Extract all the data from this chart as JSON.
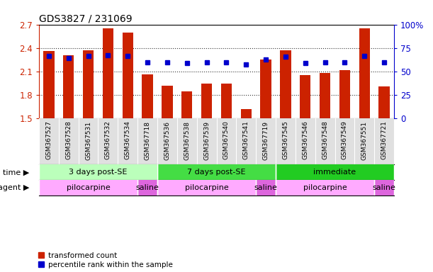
{
  "title": "GDS3827 / 231069",
  "samples": [
    "GSM367527",
    "GSM367528",
    "GSM367531",
    "GSM367532",
    "GSM367534",
    "GSM367718",
    "GSM367536",
    "GSM367538",
    "GSM367539",
    "GSM367540",
    "GSM367541",
    "GSM367719",
    "GSM367545",
    "GSM367546",
    "GSM367548",
    "GSM367549",
    "GSM367551",
    "GSM367721"
  ],
  "red_values": [
    2.36,
    2.31,
    2.37,
    2.65,
    2.6,
    2.06,
    1.92,
    1.85,
    1.95,
    1.95,
    1.62,
    2.25,
    2.37,
    2.05,
    2.08,
    2.12,
    2.65,
    1.91
  ],
  "blue_values": [
    2.3,
    2.27,
    2.3,
    2.31,
    2.3,
    2.22,
    2.22,
    2.21,
    2.22,
    2.22,
    2.19,
    2.25,
    2.29,
    2.21,
    2.22,
    2.22,
    2.3,
    2.22
  ],
  "ymin": 1.5,
  "ymax": 2.7,
  "y2min": 0,
  "y2max": 100,
  "yticks": [
    1.5,
    1.8,
    2.1,
    2.4,
    2.7
  ],
  "ytick_labels": [
    "1.5",
    "1.8",
    "2.1",
    "2.4",
    "2.7"
  ],
  "y2ticks": [
    0,
    25,
    50,
    75,
    100
  ],
  "y2tick_labels": [
    "0",
    "25",
    "50",
    "75",
    "100%"
  ],
  "red_color": "#cc2200",
  "blue_color": "#0000cc",
  "bar_bottom": 1.5,
  "time_groups": [
    {
      "label": "3 days post-SE",
      "start": 0,
      "end": 5,
      "color": "#bbffbb"
    },
    {
      "label": "7 days post-SE",
      "start": 6,
      "end": 11,
      "color": "#44dd44"
    },
    {
      "label": "immediate",
      "start": 12,
      "end": 17,
      "color": "#22cc22"
    }
  ],
  "agent_groups": [
    {
      "label": "pilocarpine",
      "start": 0,
      "end": 4,
      "color": "#ffaaff"
    },
    {
      "label": "saline",
      "start": 5,
      "end": 5,
      "color": "#dd66dd"
    },
    {
      "label": "pilocarpine",
      "start": 6,
      "end": 10,
      "color": "#ffaaff"
    },
    {
      "label": "saline",
      "start": 11,
      "end": 11,
      "color": "#dd66dd"
    },
    {
      "label": "pilocarpine",
      "start": 12,
      "end": 16,
      "color": "#ffaaff"
    },
    {
      "label": "saline",
      "start": 17,
      "end": 17,
      "color": "#dd66dd"
    }
  ],
  "legend_red": "transformed count",
  "legend_blue": "percentile rank within the sample",
  "time_label": "time",
  "agent_label": "agent",
  "bar_width": 0.55,
  "blue_marker_size": 5,
  "tick_label_fontsize": 6.5,
  "label_fontsize": 8,
  "axis_fontsize": 8.5,
  "title_fontsize": 10,
  "background_gray": "#e0e0e0",
  "n_samples": 18
}
